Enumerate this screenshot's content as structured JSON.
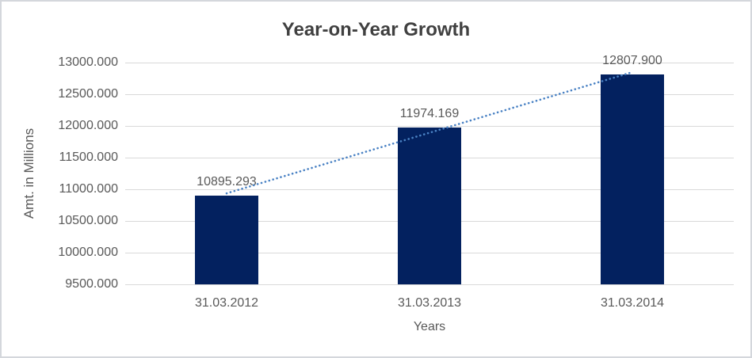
{
  "chart_data": {
    "type": "bar",
    "title": "Year-on-Year Growth",
    "xlabel": "Years",
    "ylabel": "Amt. in Millions",
    "categories": [
      "31.03.2012",
      "31.03.2013",
      "31.03.2014"
    ],
    "values": [
      10895.293,
      11974.169,
      12807.9
    ],
    "data_labels": [
      "10895.293",
      "11974.169",
      "12807.900"
    ],
    "ylim": [
      9500,
      13000
    ],
    "ytick_step": 500,
    "ytick_labels": [
      "9500.000",
      "10000.000",
      "10500.000",
      "11000.000",
      "11500.000",
      "12000.000",
      "12500.000",
      "13000.000"
    ],
    "grid": true,
    "legend": "none",
    "trendline": {
      "type": "linear",
      "style": "dotted"
    },
    "colors": {
      "bar": "#03215F",
      "trendline": "#4A82C4",
      "gridline": "#D9D9D9",
      "title_text": "#404040",
      "axis_text": "#595959",
      "border": "#D4D7DC",
      "background": "#FFFFFF"
    }
  }
}
